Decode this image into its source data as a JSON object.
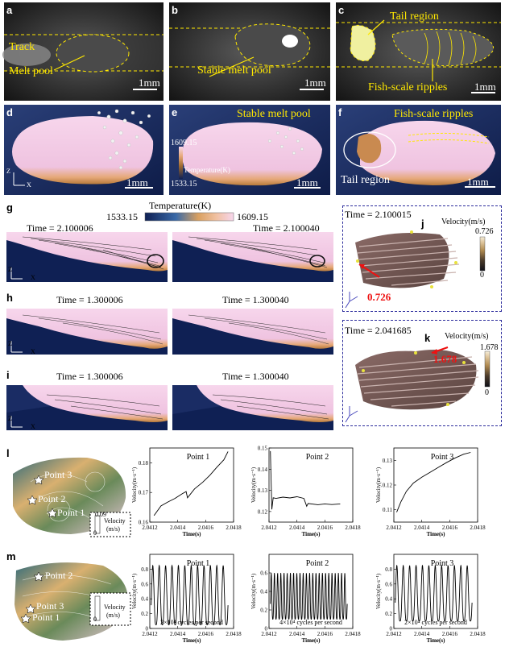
{
  "panels": {
    "a": "a",
    "b": "b",
    "c": "c",
    "d": "d",
    "e": "e",
    "f": "f",
    "g": "g",
    "h": "h",
    "i": "i",
    "j": "j",
    "k": "k",
    "l": "l",
    "m": "m"
  },
  "top": {
    "a_track": "Track",
    "a_melt_pool": "Melt pool",
    "a_scale": "1mm",
    "b_stable": "Stable melt pool",
    "b_scale": "1mm",
    "c_tail": "Tail region",
    "c_fish": "Fish-scale ripples",
    "c_scale": "1mm"
  },
  "sim": {
    "d_scale": "1mm",
    "axis_z": "Z",
    "axis_x": "X",
    "e_stable": "Stable melt pool",
    "e_tmax": "1609.15",
    "e_temp": "Temperature(K)",
    "e_tmin": "1533.15",
    "e_scale": "1mm",
    "f_fish": "Fish-scale ripples",
    "f_tail": "Tail region",
    "f_scale": "1mm"
  },
  "temp_bar": {
    "title": "Temperature(K)",
    "min": "1533.15",
    "max": "1609.15"
  },
  "g": {
    "t1": "Time = 2.100006",
    "t2": "Time = 2.100040"
  },
  "h": {
    "t1": "Time = 1.300006",
    "t2": "Time = 1.300040"
  },
  "i": {
    "t1": "Time = 1.300006",
    "t2": "Time = 1.300040"
  },
  "j": {
    "time": "Time = 2.100015",
    "vel_label": "Velocity(m/s)",
    "max": "0.726",
    "min": "0",
    "arrow_val": "0.726"
  },
  "k": {
    "time": "Time = 2.041685",
    "vel_label": "Velocity(m/s)",
    "max": "1.678",
    "min": "0",
    "arrow_val": "1.678"
  },
  "l": {
    "points": [
      "Point 3",
      "Point 2",
      "Point 1"
    ],
    "cb_max": "0.09",
    "cb_min": "0",
    "cb_label1": "Velocity",
    "cb_label2": "(m/s)",
    "ylabel": "Velocity(m·s⁻¹)",
    "xlabel": "Time(s)"
  },
  "m": {
    "points": [
      "Point 2",
      "Point 3",
      "Point 1"
    ],
    "cb_min": "0",
    "cb_label1": "Velocity",
    "cb_label2": "(m/s)",
    "ylabel": "Velocity(m·s⁻¹)",
    "xlabel": "Time(s)",
    "cycles": [
      "2×10⁴ cycles per second",
      "4×10⁴ cycles per second",
      "2×10⁴ cycles per second"
    ]
  },
  "chart_data": [
    {
      "type": "line",
      "title": "Point 1",
      "xlabel": "Time(s)",
      "ylabel": "Velocity(m·s⁻¹)",
      "xlim": [
        2.0412,
        2.0418
      ],
      "ylim": [
        0.16,
        0.185
      ],
      "xticks": [
        "2.0412",
        "2.0414",
        "2.0416",
        "2.0418"
      ],
      "yticks": [
        "0.16",
        "0.17",
        "0.18"
      ],
      "x": [
        2.04123,
        2.04128,
        2.04133,
        2.04138,
        2.04143,
        2.04146,
        2.04147,
        2.04152,
        2.04158,
        2.04163,
        2.04168,
        2.04173,
        2.04176
      ],
      "y": [
        0.1622,
        0.1655,
        0.1668,
        0.168,
        0.1695,
        0.1703,
        0.1682,
        0.1712,
        0.1735,
        0.1758,
        0.1785,
        0.181,
        0.1838
      ]
    },
    {
      "type": "line",
      "title": "Point 2",
      "xlabel": "Time(s)",
      "ylabel": "Velocity(m·s⁻¹)",
      "xlim": [
        2.0412,
        2.0418
      ],
      "ylim": [
        0.115,
        0.15
      ],
      "xticks": [
        "2.0412",
        "2.0414",
        "2.0416",
        "2.0418"
      ],
      "yticks": [
        "0.12",
        "0.13",
        "0.14",
        "0.15"
      ],
      "x": [
        2.04121,
        2.04122,
        2.04123,
        2.04125,
        2.0413,
        2.04135,
        2.0414,
        2.04145,
        2.04147,
        2.04148,
        2.04155,
        2.0416,
        2.04165,
        2.04171
      ],
      "y": [
        0.1485,
        0.121,
        0.1265,
        0.1262,
        0.1268,
        0.1264,
        0.127,
        0.1262,
        0.1225,
        0.1238,
        0.1232,
        0.1236,
        0.1233,
        0.1236
      ]
    },
    {
      "type": "line",
      "title": "Point 3",
      "xlabel": "Time(s)",
      "ylabel": "Velocity(m·s⁻¹)",
      "xlim": [
        2.0412,
        2.0418
      ],
      "ylim": [
        0.105,
        0.135
      ],
      "xticks": [
        "2.0412",
        "2.0414",
        "2.0416",
        "2.0418"
      ],
      "yticks": [
        "0.11",
        "0.12",
        "0.13"
      ],
      "x": [
        2.04122,
        2.04125,
        2.04129,
        2.04134,
        2.0414,
        2.04146,
        2.04152,
        2.04158,
        2.04164,
        2.0417,
        2.04175
      ],
      "y": [
        0.109,
        0.1132,
        0.1175,
        0.1208,
        0.1232,
        0.1252,
        0.1272,
        0.1292,
        0.131,
        0.1325,
        0.1332
      ]
    },
    {
      "type": "line",
      "title": "Point 1",
      "xlabel": "Time(s)",
      "ylabel": "Velocity(m·s⁻¹)",
      "xlim": [
        2.0412,
        2.0418
      ],
      "ylim": [
        0,
        1.0
      ],
      "xticks": [
        "2.0412",
        "2.0414",
        "2.0416",
        "2.0418"
      ],
      "yticks": [
        "0",
        "0.2",
        "0.4",
        "0.6",
        "0.8"
      ],
      "frequency_hz": 20000,
      "cycles": 12,
      "min": 0.05,
      "max": 0.85,
      "annotation": "2×10⁴ cycles per second"
    },
    {
      "type": "line",
      "title": "Point 2",
      "xlabel": "Time(s)",
      "ylabel": "Velocity(m·s⁻¹)",
      "xlim": [
        2.0412,
        2.0418
      ],
      "ylim": [
        0,
        0.8
      ],
      "xticks": [
        "2.0412",
        "2.0414",
        "2.0416",
        "2.0418"
      ],
      "yticks": [
        "0",
        "0.2",
        "0.4",
        "0.6"
      ],
      "frequency_hz": 40000,
      "cycles": 24,
      "min": 0.1,
      "max": 0.6,
      "annotation": "4×10⁴ cycles per second"
    },
    {
      "type": "line",
      "title": "Point 3",
      "xlabel": "Time(s)",
      "ylabel": "Velocity(m·s⁻¹)",
      "xlim": [
        2.0412,
        2.0418
      ],
      "ylim": [
        0,
        1.0
      ],
      "xticks": [
        "2.0412",
        "2.0414",
        "2.0416",
        "2.0418"
      ],
      "yticks": [
        "0",
        "0.2",
        "0.4",
        "0.6",
        "0.8"
      ],
      "frequency_hz": 20000,
      "cycles": 12,
      "min": 0.1,
      "max": 0.85,
      "annotation": "2×10⁴ cycles per second"
    }
  ]
}
